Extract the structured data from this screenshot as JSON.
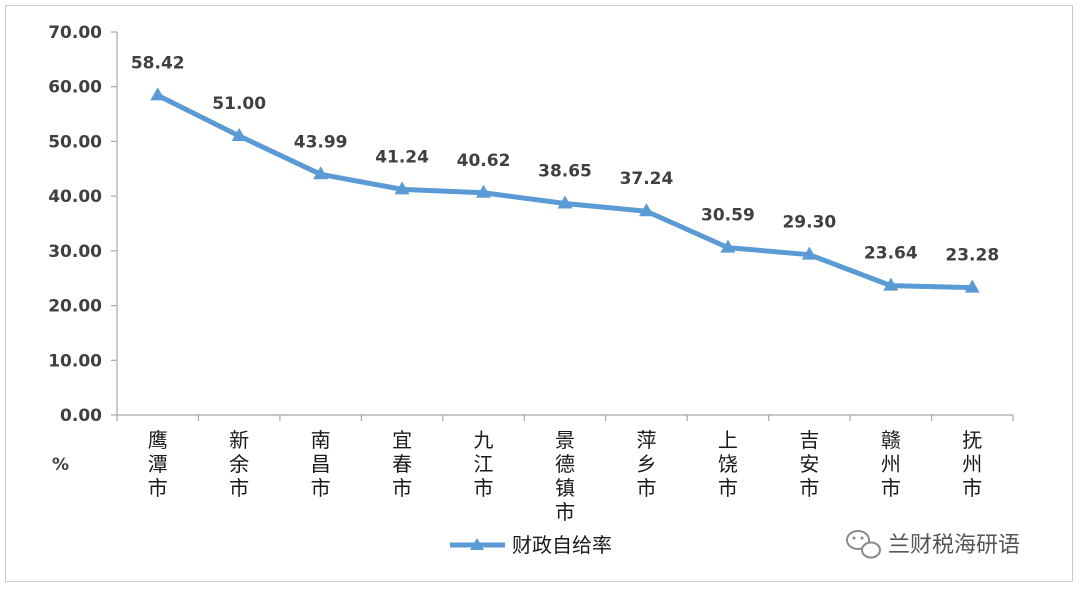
{
  "chart_data": {
    "type": "line",
    "categories": [
      "鹰潭市",
      "新余市",
      "南昌市",
      "宜春市",
      "九江市",
      "景德镇市",
      "萍乡市",
      "上饶市",
      "吉安市",
      "赣州市",
      "抚州市"
    ],
    "series": [
      {
        "name": "财政自给率",
        "values": [
          58.42,
          51.0,
          43.99,
          41.24,
          40.62,
          38.65,
          37.24,
          30.59,
          29.3,
          23.64,
          23.28
        ],
        "labels": [
          "58.42",
          "51.00",
          "43.99",
          "41.24",
          "40.62",
          "38.65",
          "37.24",
          "30.59",
          "29.30",
          "23.64",
          "23.28"
        ],
        "color": "#5b9bd5",
        "marker": "triangle"
      }
    ],
    "yticks": [
      "0.00",
      "10.00",
      "20.00",
      "30.00",
      "40.00",
      "50.00",
      "60.00",
      "70.00"
    ],
    "ylim": [
      0,
      70
    ],
    "ylabel": "%",
    "title": "",
    "xlabel": "",
    "grid": false,
    "legend_position": "bottom-center"
  },
  "watermark": {
    "icon": "wechat-icon",
    "text": "兰财税海研语"
  },
  "colors": {
    "line": "#5b9bd5",
    "axis": "#a6a6a6",
    "text": "#404040"
  }
}
